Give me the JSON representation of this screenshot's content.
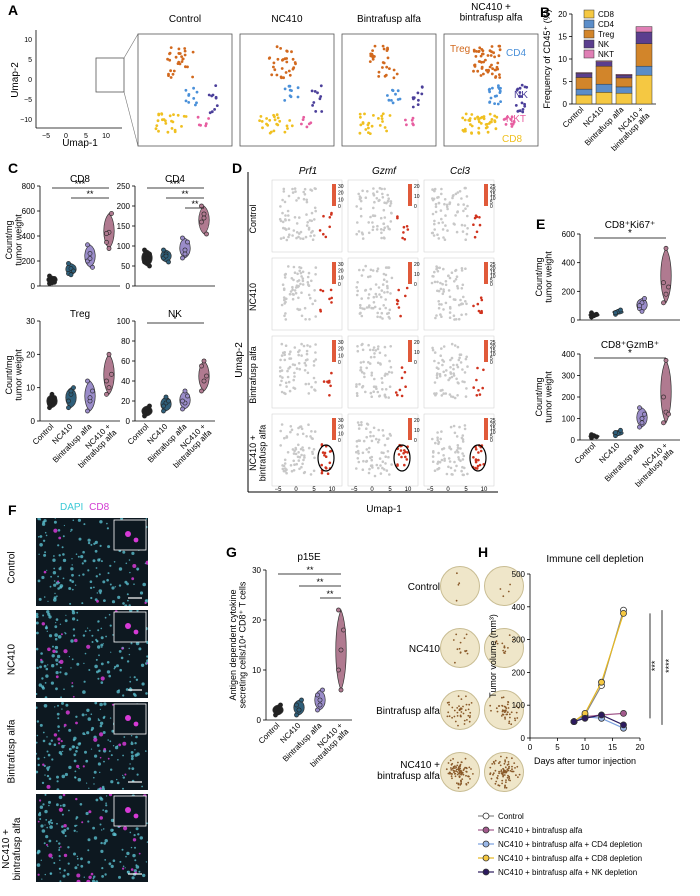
{
  "panels": {
    "A": "A",
    "B": "B",
    "C": "C",
    "D": "D",
    "E": "E",
    "F": "F",
    "G": "G",
    "H": "H"
  },
  "panelA": {
    "titles": [
      "Control",
      "NC410",
      "Bintrafusp alfa",
      "NC410 +\nbintrafusp alfa"
    ],
    "xaxis": "Umap-1",
    "yaxis": "Umap-2",
    "xticks": [
      "−5",
      "0",
      "5",
      "10"
    ],
    "yticks": [
      "10",
      "5",
      "0",
      "−5",
      "−10"
    ],
    "clusters": [
      {
        "name": "Treg",
        "color": "#d2691e"
      },
      {
        "name": "CD4",
        "color": "#4a90d9"
      },
      {
        "name": "NK",
        "color": "#4b3f9a"
      },
      {
        "name": "NKT",
        "color": "#e75ea0"
      },
      {
        "name": "CD8",
        "color": "#f0c020"
      }
    ]
  },
  "chart_data": [
    {
      "id": "B",
      "type": "bar",
      "stacked": true,
      "ylabel": "Frequency of CD45⁺ (%)",
      "ylim": [
        0,
        20
      ],
      "yticks": [
        "0",
        "5",
        "10",
        "15",
        "20"
      ],
      "categories": [
        "Control",
        "NC410",
        "Bintrafusp alfa",
        "NC410 +\nbintrafusp alfa"
      ],
      "series": [
        {
          "name": "CD8",
          "color": "#f5c842",
          "values": [
            2.0,
            2.6,
            2.4,
            6.4
          ]
        },
        {
          "name": "CD4",
          "color": "#5b8dc9",
          "values": [
            1.3,
            1.8,
            1.4,
            2.0
          ]
        },
        {
          "name": "Treg",
          "color": "#d2852a",
          "values": [
            2.6,
            4.0,
            2.0,
            5.0
          ]
        },
        {
          "name": "NK",
          "color": "#5b3e8e",
          "values": [
            0.9,
            1.0,
            0.6,
            2.6
          ]
        },
        {
          "name": "NKT",
          "color": "#e07fb5",
          "values": [
            0.2,
            0.2,
            0.2,
            1.2
          ]
        }
      ]
    },
    {
      "id": "C",
      "type": "violin",
      "ylabel": "Count/mg\ntumor weight",
      "categories": [
        "Control",
        "NC410",
        "Bintrafusp alfa",
        "NC410 +\nbintrafusp alfa"
      ],
      "subplots": [
        {
          "title": "CD8",
          "ylim": [
            0,
            800
          ],
          "yticks": [
            "0",
            "200",
            "400",
            "600",
            "800"
          ],
          "sig": [
            "***",
            "**"
          ],
          "values": [
            [
              20,
              40,
              30,
              50,
              25,
              60,
              80
            ],
            [
              100,
              140,
              120,
              180,
              90
            ],
            [
              200,
              260,
              150,
              330,
              220
            ],
            [
              350,
              430,
              580,
              420,
              300
            ]
          ]
        },
        {
          "title": "CD4",
          "ylim": [
            0,
            250
          ],
          "yticks": [
            "0",
            "50",
            "100",
            "150",
            "200",
            "250"
          ],
          "sig": [
            "***",
            "**",
            "**"
          ],
          "values": [
            [
              60,
              75,
              50,
              90,
              70,
              80
            ],
            [
              70,
              80,
              60,
              90,
              75
            ],
            [
              70,
              90,
              110,
              120,
              80
            ],
            [
              160,
              180,
              130,
              200,
              170
            ]
          ]
        },
        {
          "title": "Treg",
          "ylim": [
            0,
            30
          ],
          "yticks": [
            "0",
            "10",
            "20",
            "30"
          ],
          "sig": [],
          "values": [
            [
              5,
              6,
              7,
              4,
              8,
              6
            ],
            [
              4,
              8,
              10,
              6,
              9
            ],
            [
              3,
              6,
              9,
              12,
              7
            ],
            [
              8,
              10,
              14,
              12,
              20
            ]
          ]
        },
        {
          "title": "NK",
          "ylim": [
            0,
            100
          ],
          "yticks": [
            "0",
            "20",
            "40",
            "60",
            "80",
            "100"
          ],
          "sig": [
            "*"
          ],
          "values": [
            [
              5,
              10,
              15,
              8,
              12
            ],
            [
              10,
              18,
              20,
              15,
              24
            ],
            [
              12,
              18,
              25,
              20,
              30
            ],
            [
              30,
              40,
              45,
              55,
              60
            ]
          ]
        }
      ]
    },
    {
      "id": "E",
      "type": "violin",
      "ylabel": "Count/mg\ntumor weight",
      "categories": [
        "Control",
        "NC410",
        "Bintrafusp alfa",
        "NC410 +\nbintrafusp alfa"
      ],
      "subplots": [
        {
          "title": "CD8⁺Ki67⁺",
          "ylim": [
            0,
            600
          ],
          "yticks": [
            "0",
            "200",
            "400",
            "600"
          ],
          "sig": [
            "*"
          ],
          "values": [
            [
              20,
              30,
              40,
              50,
              35
            ],
            [
              40,
              60,
              70,
              50
            ],
            [
              80,
              120,
              150,
              100,
              60
            ],
            [
              120,
              180,
              230,
              260,
              500
            ]
          ]
        },
        {
          "title": "CD8⁺GzmB⁺",
          "ylim": [
            0,
            400
          ],
          "yticks": [
            "0",
            "100",
            "200",
            "300",
            "400"
          ],
          "sig": [
            "*"
          ],
          "values": [
            [
              10,
              20,
              15,
              25,
              18
            ],
            [
              20,
              30,
              45,
              35
            ],
            [
              60,
              100,
              120,
              150,
              80
            ],
            [
              80,
              130,
              120,
              200,
              370
            ]
          ]
        }
      ]
    },
    {
      "id": "G",
      "type": "violin",
      "title": "p15E",
      "ylabel": "Antigen dependent cytokine\nsecreting cells/10⁴ CD8⁺ T cells",
      "ylim": [
        0,
        30
      ],
      "yticks": [
        "0",
        "10",
        "20",
        "30"
      ],
      "sig": [
        "**",
        "**",
        "**"
      ],
      "categories": [
        "Control",
        "NC410",
        "Bintrafusp alfa",
        "NC410 +\nbintrafusp alfa"
      ],
      "values": [
        [
          1,
          2,
          3,
          2,
          1.5
        ],
        [
          1,
          2,
          4,
          3,
          2
        ],
        [
          2,
          4,
          6,
          5,
          3
        ],
        [
          10,
          14,
          18,
          22,
          6
        ]
      ]
    },
    {
      "id": "H",
      "type": "line",
      "title": "Immune cell depletion",
      "xlabel": "Days after tumor injection",
      "ylabel": "Tumor volume (mm³)",
      "xlim": [
        0,
        20
      ],
      "ylim": [
        0,
        500
      ],
      "xticks": [
        "0",
        "5",
        "10",
        "15",
        "20"
      ],
      "yticks": [
        "0",
        "100",
        "200",
        "300",
        "400",
        "500"
      ],
      "sig": [
        "***",
        "****"
      ],
      "series": [
        {
          "name": "Control",
          "color": "#ffffff",
          "edge": "#333333",
          "x": [
            8,
            10,
            13,
            17
          ],
          "y": [
            50,
            70,
            160,
            390
          ]
        },
        {
          "name": "NC410 + bintrafusp alfa",
          "color": "#a25a8c",
          "edge": "#333333",
          "x": [
            8,
            10,
            13,
            17
          ],
          "y": [
            50,
            65,
            70,
            75
          ]
        },
        {
          "name": "NC410 + bintrafusp alfa + CD4 depletion",
          "color": "#9ab8e8",
          "edge": "#333333",
          "x": [
            8,
            10,
            13,
            17
          ],
          "y": [
            50,
            65,
            60,
            30
          ]
        },
        {
          "name": "NC410 + bintrafusp alfa + CD8 depletion",
          "color": "#f5c842",
          "edge": "#333333",
          "x": [
            8,
            10,
            13,
            17
          ],
          "y": [
            50,
            75,
            170,
            380
          ]
        },
        {
          "name": "NC410 + bintrafusp alfa + NK depletion",
          "color": "#2c1a5e",
          "edge": "#333333",
          "x": [
            8,
            10,
            13,
            17
          ],
          "y": [
            50,
            60,
            70,
            40
          ]
        }
      ]
    }
  ],
  "panelD": {
    "genes": [
      "Prf1",
      "Gzmf",
      "Ccl3"
    ],
    "rows": [
      "Control",
      "NC410",
      "Bintrafusp alfa",
      "NC410 +\nbintrafusp alfa"
    ],
    "xaxis": "Umap-1",
    "yaxis": "Umap-2",
    "xticks": [
      "−5",
      "0",
      "5",
      "10"
    ],
    "scales": [
      [
        "30",
        "20",
        "10",
        "0"
      ],
      [
        "20",
        "10",
        "0"
      ],
      [
        "25",
        "20",
        "15",
        "10",
        "5",
        "0"
      ]
    ]
  },
  "panelF": {
    "legend_dapi": "DAPI",
    "legend_cd8": "CD8",
    "rows": [
      "Control",
      "NC410",
      "Bintrafusp alfa",
      "NC410 +\nbintrafusp alfa"
    ]
  },
  "panelG_wells": {
    "rows": [
      "Control",
      "NC410",
      "Bintrafusp alfa",
      "NC410 +\nbintrafusp alfa"
    ]
  }
}
